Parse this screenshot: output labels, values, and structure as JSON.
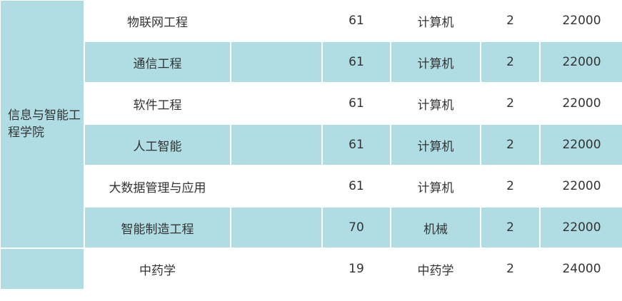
{
  "colors": {
    "row_shade": "#afdde3",
    "text": "#333333"
  },
  "groups": [
    {
      "college": "信息与智能工程学院",
      "rows": [
        {
          "major": "物联网工程",
          "extra": "",
          "score": "61",
          "category": "计算机",
          "years": "2",
          "fee": "22000"
        },
        {
          "major": "通信工程",
          "extra": "",
          "score": "61",
          "category": "计算机",
          "years": "2",
          "fee": "22000"
        },
        {
          "major": "软件工程",
          "extra": "",
          "score": "61",
          "category": "计算机",
          "years": "2",
          "fee": "22000"
        },
        {
          "major": "人工智能",
          "extra": "",
          "score": "61",
          "category": "计算机",
          "years": "2",
          "fee": "22000"
        },
        {
          "major": "大数据管理与应用",
          "extra": "",
          "score": "61",
          "category": "计算机",
          "years": "2",
          "fee": "22000"
        },
        {
          "major": "智能制造工程",
          "extra": "",
          "score": "70",
          "category": "机械",
          "years": "2",
          "fee": "22000"
        }
      ]
    },
    {
      "college": "",
      "rows": [
        {
          "major": "中药学",
          "extra": "",
          "score": "19",
          "category": "中药学",
          "years": "2",
          "fee": "24000"
        }
      ]
    }
  ]
}
